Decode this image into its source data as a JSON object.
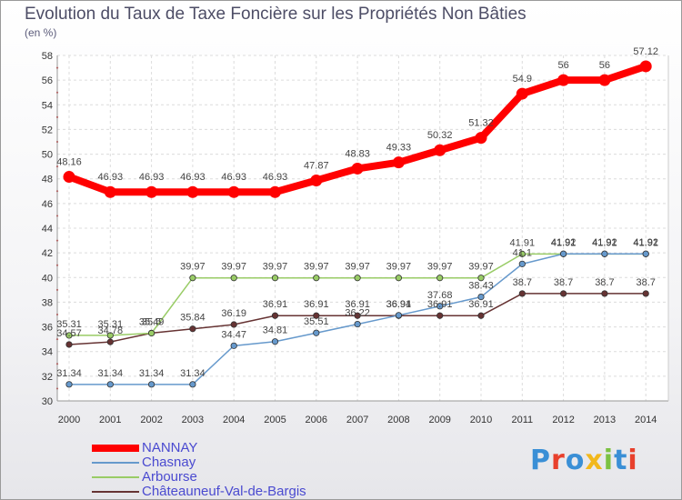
{
  "title": "Evolution du Taux de Taxe Foncière sur les Propriétés Non Bâties",
  "unit_label": "(en %)",
  "logo": {
    "text": "Proxiti",
    "colors": [
      "#3a8fd6",
      "#e8402c",
      "#3a8fd6",
      "#f2b81c",
      "#7cc242",
      "#3a8fd6",
      "#e8402c"
    ]
  },
  "chart_data": {
    "type": "line",
    "x": [
      "2000",
      "2001",
      "2002",
      "2003",
      "2004",
      "2005",
      "2006",
      "2007",
      "2008",
      "2009",
      "2010",
      "2011",
      "2012",
      "2013",
      "2014"
    ],
    "ylim": [
      30,
      58
    ],
    "yticks": [
      30,
      32,
      34,
      36,
      38,
      40,
      42,
      44,
      46,
      48,
      50,
      52,
      54,
      56,
      58
    ],
    "grid": true,
    "legend_position": "bottom-left",
    "series": [
      {
        "name": "NANNAY",
        "color": "#ff0000",
        "width": 8,
        "values": [
          48.16,
          46.93,
          46.93,
          46.93,
          46.93,
          46.93,
          47.87,
          48.83,
          49.33,
          50.32,
          51.32,
          54.9,
          56,
          56,
          57.12
        ],
        "labels": [
          "48.16",
          "46.93",
          "46.93",
          "46.93",
          "46.93",
          "46.93",
          "47.87",
          "48.83",
          "49.33",
          "50.32",
          "51.32",
          "54.9",
          "56",
          "56",
          "57.12"
        ]
      },
      {
        "name": "Chasnay",
        "color": "#6699cc",
        "width": 1.5,
        "values": [
          31.34,
          31.34,
          31.34,
          31.34,
          34.47,
          34.81,
          35.51,
          36.22,
          36.94,
          37.68,
          38.43,
          41.1,
          41.92,
          41.92,
          41.92
        ],
        "labels": [
          "31.34",
          "31.34",
          "31.34",
          "31.34",
          "34.47",
          "34.81",
          "35.51",
          "36.22",
          "36.94",
          "37.68",
          "38.43",
          "41.1",
          "41.92",
          "41.92",
          "41.92"
        ]
      },
      {
        "name": "Arbourse",
        "color": "#99cc66",
        "width": 1.5,
        "values": [
          35.31,
          35.31,
          35.49,
          39.97,
          39.97,
          39.97,
          39.97,
          39.97,
          39.97,
          39.97,
          39.97,
          41.91,
          41.91,
          41.91,
          41.91
        ],
        "labels": [
          "35.31",
          "35.31",
          "35.49",
          "39.97",
          "39.97",
          "39.97",
          "39.97",
          "39.97",
          "39.97",
          "39.97",
          "39.97",
          "41.91",
          "41.91",
          "41.91",
          "41.91"
        ]
      },
      {
        "name": "Châteauneuf-Val-de-Bargis",
        "color": "#663333",
        "width": 1.5,
        "values": [
          34.57,
          34.78,
          35.5,
          35.84,
          36.19,
          36.91,
          36.91,
          36.91,
          36.91,
          36.91,
          36.91,
          38.7,
          38.7,
          38.7,
          38.7
        ],
        "labels": [
          "34.57",
          "34.78",
          "35.5",
          "35.84",
          "36.19",
          "36.91",
          "36.91",
          "36.91",
          "36.91",
          "36.91",
          "36.91",
          "38.7",
          "38.7",
          "38.7",
          "38.7"
        ]
      }
    ]
  }
}
